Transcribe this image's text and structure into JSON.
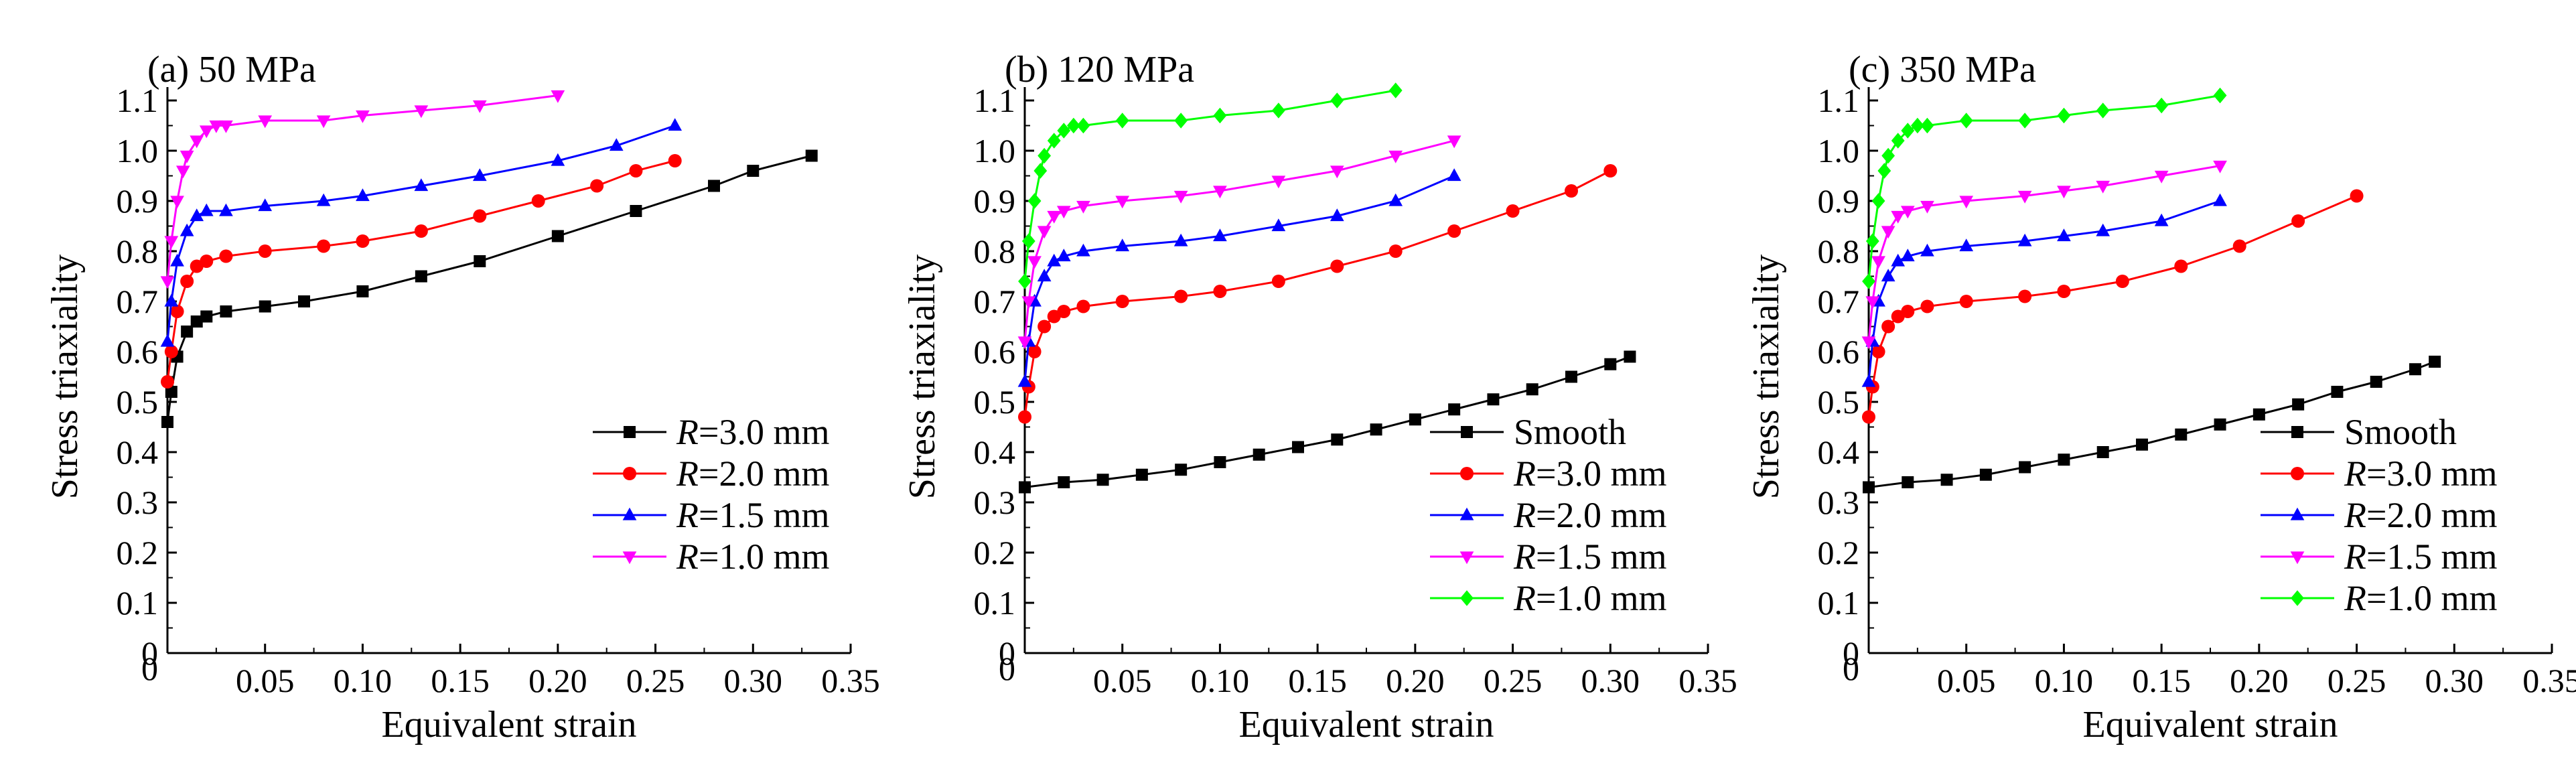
{
  "chart_data": [
    {
      "type": "line",
      "title": "(a) 50 MPa",
      "xlabel": "Equivalent strain",
      "ylabel": "Stress triaxiality",
      "xlim": [
        0,
        0.35
      ],
      "ylim": [
        0,
        1.1
      ],
      "xticks": [
        "0.05",
        "0.10",
        "0.15",
        "0.20",
        "0.25",
        "0.30",
        "0.35"
      ],
      "yticks": [
        "0",
        "0.1",
        "0.2",
        "0.3",
        "0.4",
        "0.5",
        "0.6",
        "0.7",
        "0.8",
        "0.9",
        "1.0",
        "1.1"
      ],
      "legend_position": "bottom-right",
      "series": [
        {
          "name": "=3.0 mm",
          "italic_prefix": "R",
          "color": "#000000",
          "marker": "square",
          "x": [
            0.0,
            0.002,
            0.005,
            0.01,
            0.015,
            0.02,
            0.03,
            0.05,
            0.07,
            0.1,
            0.13,
            0.16,
            0.2,
            0.24,
            0.28,
            0.3,
            0.33
          ],
          "y": [
            0.46,
            0.52,
            0.59,
            0.64,
            0.66,
            0.67,
            0.68,
            0.69,
            0.7,
            0.72,
            0.75,
            0.78,
            0.83,
            0.88,
            0.93,
            0.96,
            0.99
          ]
        },
        {
          "name": "=2.0 mm",
          "italic_prefix": "R",
          "color": "#ff0000",
          "marker": "circle",
          "x": [
            0.0,
            0.002,
            0.005,
            0.01,
            0.015,
            0.02,
            0.03,
            0.05,
            0.08,
            0.1,
            0.13,
            0.16,
            0.19,
            0.22,
            0.24,
            0.26
          ],
          "y": [
            0.54,
            0.6,
            0.68,
            0.74,
            0.77,
            0.78,
            0.79,
            0.8,
            0.81,
            0.82,
            0.84,
            0.87,
            0.9,
            0.93,
            0.96,
            0.98
          ]
        },
        {
          "name": "=1.5 mm",
          "italic_prefix": "R",
          "color": "#0000ff",
          "marker": "triangle-up",
          "x": [
            0.0,
            0.002,
            0.005,
            0.01,
            0.015,
            0.02,
            0.03,
            0.05,
            0.08,
            0.1,
            0.13,
            0.16,
            0.2,
            0.23,
            0.26
          ],
          "y": [
            0.62,
            0.7,
            0.78,
            0.84,
            0.87,
            0.88,
            0.88,
            0.89,
            0.9,
            0.91,
            0.93,
            0.95,
            0.98,
            1.01,
            1.05
          ]
        },
        {
          "name": "=1.0 mm",
          "italic_prefix": "R",
          "color": "#ff00ff",
          "marker": "triangle-down",
          "x": [
            0.0,
            0.002,
            0.005,
            0.008,
            0.01,
            0.015,
            0.02,
            0.025,
            0.03,
            0.05,
            0.08,
            0.1,
            0.13,
            0.16,
            0.2
          ],
          "y": [
            0.74,
            0.82,
            0.9,
            0.96,
            0.99,
            1.02,
            1.04,
            1.05,
            1.05,
            1.06,
            1.06,
            1.07,
            1.08,
            1.09,
            1.11
          ]
        }
      ]
    },
    {
      "type": "line",
      "title": "(b) 120 MPa",
      "xlabel": "Equivalent strain",
      "ylabel": "Stress triaxiality",
      "xlim": [
        0,
        0.35
      ],
      "ylim": [
        0,
        1.1
      ],
      "xticks": [
        "0.05",
        "0.10",
        "0.15",
        "0.20",
        "0.25",
        "0.30",
        "0.35"
      ],
      "yticks": [
        "0",
        "0.1",
        "0.2",
        "0.3",
        "0.4",
        "0.5",
        "0.6",
        "0.7",
        "0.8",
        "0.9",
        "1.0",
        "1.1"
      ],
      "legend_position": "bottom-right",
      "series": [
        {
          "name": "Smooth",
          "italic_prefix": "",
          "color": "#000000",
          "marker": "square",
          "x": [
            0.0,
            0.02,
            0.04,
            0.06,
            0.08,
            0.1,
            0.12,
            0.14,
            0.16,
            0.18,
            0.2,
            0.22,
            0.24,
            0.26,
            0.28,
            0.3,
            0.31
          ],
          "y": [
            0.33,
            0.34,
            0.345,
            0.355,
            0.365,
            0.38,
            0.395,
            0.41,
            0.425,
            0.445,
            0.465,
            0.485,
            0.505,
            0.525,
            0.55,
            0.575,
            0.59
          ]
        },
        {
          "name": "=3.0 mm",
          "italic_prefix": "R",
          "color": "#ff0000",
          "marker": "circle",
          "x": [
            0.0,
            0.002,
            0.005,
            0.01,
            0.015,
            0.02,
            0.03,
            0.05,
            0.08,
            0.1,
            0.13,
            0.16,
            0.19,
            0.22,
            0.25,
            0.28,
            0.3
          ],
          "y": [
            0.47,
            0.53,
            0.6,
            0.65,
            0.67,
            0.68,
            0.69,
            0.7,
            0.71,
            0.72,
            0.74,
            0.77,
            0.8,
            0.84,
            0.88,
            0.92,
            0.96
          ]
        },
        {
          "name": "=2.0 mm",
          "italic_prefix": "R",
          "color": "#0000ff",
          "marker": "triangle-up",
          "x": [
            0.0,
            0.002,
            0.005,
            0.01,
            0.015,
            0.02,
            0.03,
            0.05,
            0.08,
            0.1,
            0.13,
            0.16,
            0.19,
            0.22
          ],
          "y": [
            0.54,
            0.62,
            0.7,
            0.75,
            0.78,
            0.79,
            0.8,
            0.81,
            0.82,
            0.83,
            0.85,
            0.87,
            0.9,
            0.95
          ]
        },
        {
          "name": "=1.5 mm",
          "italic_prefix": "R",
          "color": "#ff00ff",
          "marker": "triangle-down",
          "x": [
            0.0,
            0.002,
            0.005,
            0.01,
            0.015,
            0.02,
            0.03,
            0.05,
            0.08,
            0.1,
            0.13,
            0.16,
            0.19,
            0.22
          ],
          "y": [
            0.62,
            0.7,
            0.78,
            0.84,
            0.87,
            0.88,
            0.89,
            0.9,
            0.91,
            0.92,
            0.94,
            0.96,
            0.99,
            1.02
          ]
        },
        {
          "name": "=1.0 mm",
          "italic_prefix": "R",
          "color": "#00ff00",
          "marker": "diamond",
          "x": [
            0.0,
            0.002,
            0.005,
            0.008,
            0.01,
            0.015,
            0.02,
            0.025,
            0.03,
            0.05,
            0.08,
            0.1,
            0.13,
            0.16,
            0.19
          ],
          "y": [
            0.74,
            0.82,
            0.9,
            0.96,
            0.99,
            1.02,
            1.04,
            1.05,
            1.05,
            1.06,
            1.06,
            1.07,
            1.08,
            1.1,
            1.12
          ]
        }
      ]
    },
    {
      "type": "line",
      "title": "(c) 350 MPa",
      "xlabel": "Equivalent strain",
      "ylabel": "Stress triaxiality",
      "xlim": [
        0,
        0.35
      ],
      "ylim": [
        0,
        1.1
      ],
      "xticks": [
        "0.05",
        "0.10",
        "0.15",
        "0.20",
        "0.25",
        "0.30",
        "0.35"
      ],
      "yticks": [
        "0",
        "0.1",
        "0.2",
        "0.3",
        "0.4",
        "0.5",
        "0.6",
        "0.7",
        "0.8",
        "0.9",
        "1.0",
        "1.1"
      ],
      "legend_position": "bottom-right",
      "series": [
        {
          "name": "Smooth",
          "italic_prefix": "",
          "color": "#000000",
          "marker": "square",
          "x": [
            0.0,
            0.02,
            0.04,
            0.06,
            0.08,
            0.1,
            0.12,
            0.14,
            0.16,
            0.18,
            0.2,
            0.22,
            0.24,
            0.26,
            0.28,
            0.29
          ],
          "y": [
            0.33,
            0.34,
            0.345,
            0.355,
            0.37,
            0.385,
            0.4,
            0.415,
            0.435,
            0.455,
            0.475,
            0.495,
            0.52,
            0.54,
            0.565,
            0.58
          ]
        },
        {
          "name": "=3.0 mm",
          "italic_prefix": "R",
          "color": "#ff0000",
          "marker": "circle",
          "x": [
            0.0,
            0.002,
            0.005,
            0.01,
            0.015,
            0.02,
            0.03,
            0.05,
            0.08,
            0.1,
            0.13,
            0.16,
            0.19,
            0.22,
            0.25
          ],
          "y": [
            0.47,
            0.53,
            0.6,
            0.65,
            0.67,
            0.68,
            0.69,
            0.7,
            0.71,
            0.72,
            0.74,
            0.77,
            0.81,
            0.86,
            0.91
          ]
        },
        {
          "name": "=2.0 mm",
          "italic_prefix": "R",
          "color": "#0000ff",
          "marker": "triangle-up",
          "x": [
            0.0,
            0.002,
            0.005,
            0.01,
            0.015,
            0.02,
            0.03,
            0.05,
            0.08,
            0.1,
            0.12,
            0.15,
            0.18
          ],
          "y": [
            0.54,
            0.62,
            0.7,
            0.75,
            0.78,
            0.79,
            0.8,
            0.81,
            0.82,
            0.83,
            0.84,
            0.86,
            0.9
          ]
        },
        {
          "name": "=1.5 mm",
          "italic_prefix": "R",
          "color": "#ff00ff",
          "marker": "triangle-down",
          "x": [
            0.0,
            0.002,
            0.005,
            0.01,
            0.015,
            0.02,
            0.03,
            0.05,
            0.08,
            0.1,
            0.12,
            0.15,
            0.18
          ],
          "y": [
            0.62,
            0.7,
            0.78,
            0.84,
            0.87,
            0.88,
            0.89,
            0.9,
            0.91,
            0.92,
            0.93,
            0.95,
            0.97
          ]
        },
        {
          "name": "=1.0 mm",
          "italic_prefix": "R",
          "color": "#00ff00",
          "marker": "diamond",
          "x": [
            0.0,
            0.002,
            0.005,
            0.008,
            0.01,
            0.015,
            0.02,
            0.025,
            0.03,
            0.05,
            0.08,
            0.1,
            0.12,
            0.15,
            0.18
          ],
          "y": [
            0.74,
            0.82,
            0.9,
            0.96,
            0.99,
            1.02,
            1.04,
            1.05,
            1.05,
            1.06,
            1.06,
            1.07,
            1.08,
            1.09,
            1.11
          ]
        }
      ]
    }
  ]
}
